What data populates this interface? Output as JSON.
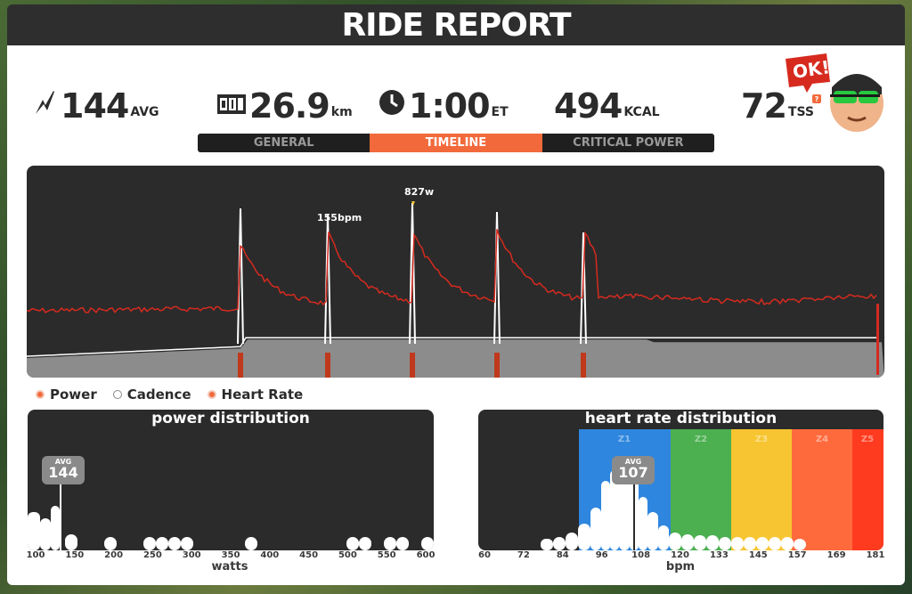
{
  "header": {
    "title": "RIDE REPORT"
  },
  "stats": {
    "power": {
      "value": "144",
      "unit": "AVG",
      "icon": "lightning-icon"
    },
    "distance": {
      "value": "26.9",
      "unit": "km",
      "icon": "odometer-icon"
    },
    "time": {
      "value": "1:00",
      "unit": "ET",
      "icon": "clock-icon"
    },
    "energy": {
      "value": "494",
      "unit": "KCAL"
    },
    "tss": {
      "value": "72",
      "unit": "TSS",
      "badge": "?"
    }
  },
  "mascot": {
    "bubble_text": "OK!"
  },
  "tabs": [
    {
      "label": "GENERAL",
      "active": false
    },
    {
      "label": "TIMELINE",
      "active": true
    },
    {
      "label": "CRITICAL POWER",
      "active": false
    }
  ],
  "timeline": {
    "annotations": {
      "peak_power": "827w",
      "peak_hr": "155bpm"
    },
    "power_color": "#ffffff",
    "heart_rate_color": "#d62a1f",
    "cadence_color": "#8c8c8c"
  },
  "legend": [
    {
      "label": "Power",
      "color": "#f26a3b"
    },
    {
      "label": "Cadence",
      "color": "#ffffff"
    },
    {
      "label": "Heart Rate",
      "color": "#f26a3b"
    }
  ],
  "power_distribution": {
    "title": "power distribution",
    "xlabel": "watts",
    "avg_label": "AVG",
    "avg_value": "144",
    "ticks": [
      "100",
      "150",
      "200",
      "250",
      "300",
      "350",
      "400",
      "450",
      "500",
      "550",
      "600"
    ]
  },
  "hr_distribution": {
    "title": "heart rate distribution",
    "xlabel": "bpm",
    "avg_label": "AVG",
    "avg_value": "107",
    "ticks": [
      "60",
      "72",
      "84",
      "96",
      "108",
      "120",
      "133",
      "145",
      "157",
      "169",
      "181"
    ],
    "zones": [
      {
        "label": "Z1",
        "color": "#2e86de"
      },
      {
        "label": "Z2",
        "color": "#4caf50"
      },
      {
        "label": "Z3",
        "color": "#f7c531"
      },
      {
        "label": "Z4",
        "color": "#ff6a3d"
      },
      {
        "label": "Z5",
        "color": "#ff3b1f"
      }
    ]
  }
}
